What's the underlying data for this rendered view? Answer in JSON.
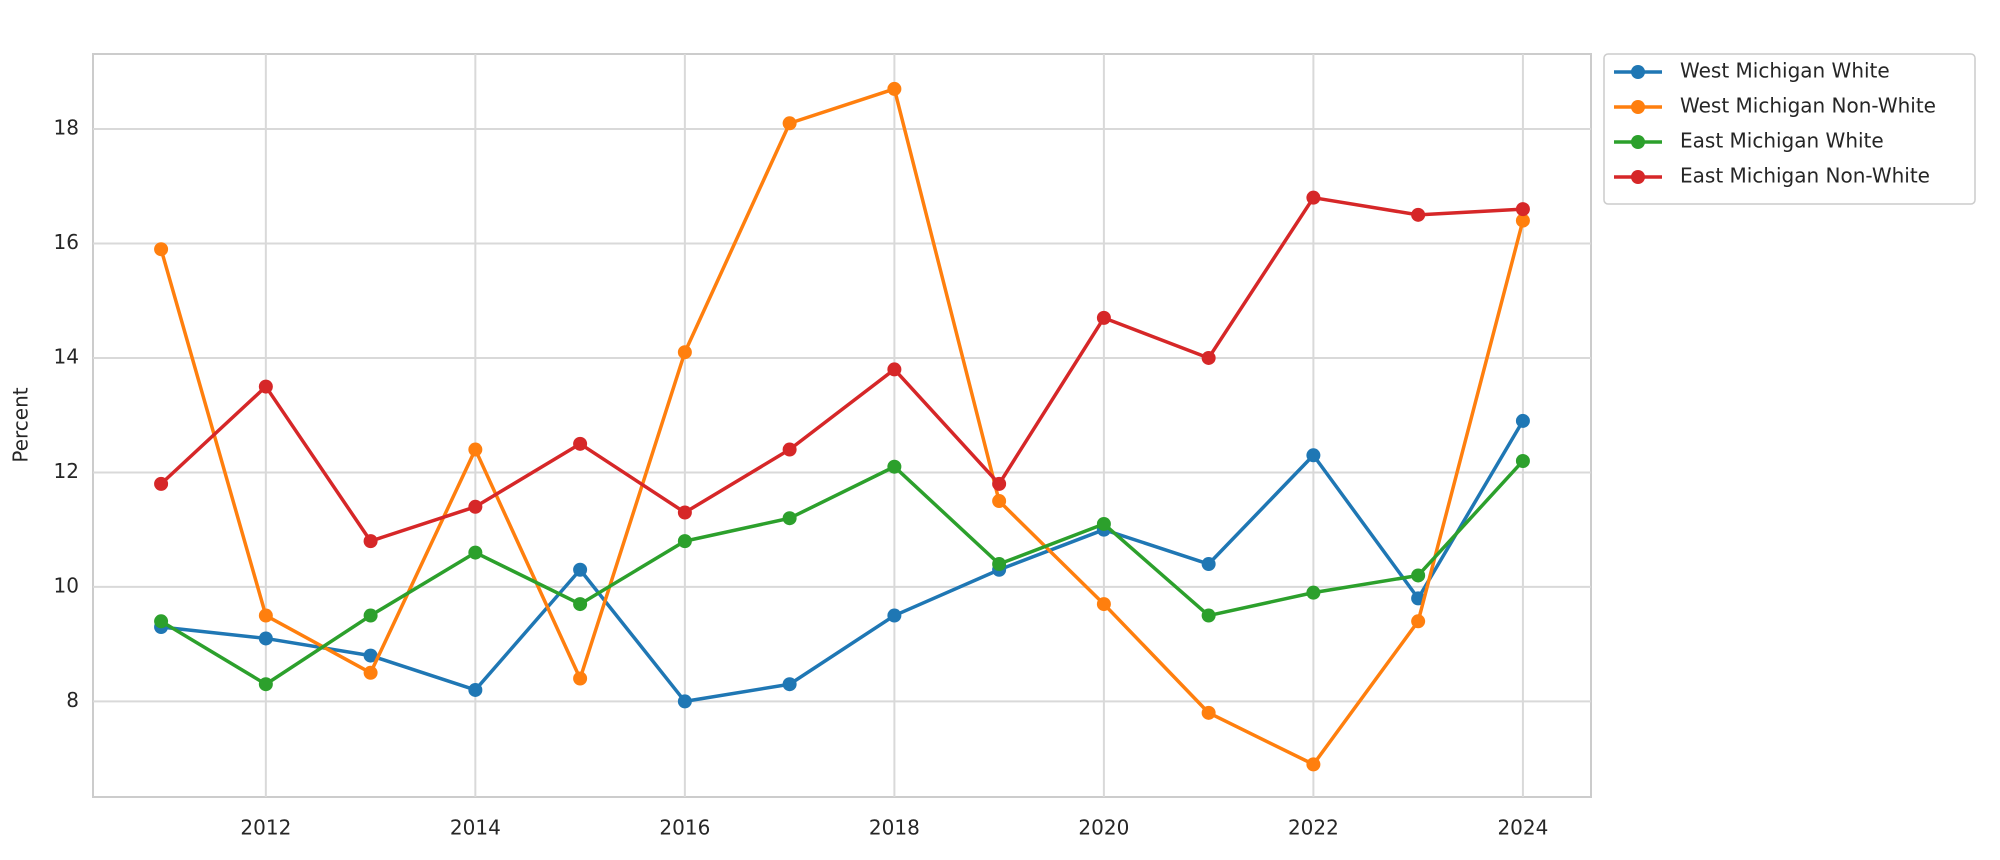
{
  "chart_data": {
    "type": "line",
    "y_label": "Percent",
    "x": [
      2011,
      2012,
      2013,
      2014,
      2015,
      2016,
      2017,
      2018,
      2019,
      2020,
      2021,
      2022,
      2023,
      2024
    ],
    "series": [
      {
        "name": "West Michigan White",
        "color": "#1f77b4",
        "values": [
          9.3,
          9.1,
          8.8,
          8.2,
          10.3,
          8.0,
          8.3,
          9.5,
          10.3,
          11.0,
          10.4,
          12.3,
          9.8,
          12.9
        ]
      },
      {
        "name": "West Michigan Non-White",
        "color": "#ff7f0e",
        "values": [
          15.9,
          9.5,
          8.5,
          12.4,
          8.4,
          14.1,
          18.1,
          18.7,
          11.5,
          9.7,
          7.8,
          6.9,
          9.4,
          16.4
        ]
      },
      {
        "name": "East Michigan White",
        "color": "#2ca02c",
        "values": [
          9.4,
          8.3,
          9.5,
          10.6,
          9.7,
          10.8,
          11.2,
          12.1,
          10.4,
          11.1,
          9.5,
          9.9,
          10.2,
          12.2
        ]
      },
      {
        "name": "East Michigan Non-White",
        "color": "#d62728",
        "values": [
          11.8,
          13.5,
          10.8,
          11.4,
          12.5,
          11.3,
          12.4,
          13.8,
          11.8,
          14.7,
          14.0,
          16.8,
          16.5,
          16.6
        ]
      }
    ],
    "xlim": [
      2010.35,
      2024.65
    ],
    "xticks": [
      2012,
      2014,
      2016,
      2018,
      2020,
      2022,
      2024
    ],
    "ylim": [
      6.33,
      19.31
    ],
    "yticks": [
      8,
      10,
      12,
      14,
      16,
      18
    ],
    "grid": true,
    "legend": "outside-upper-right",
    "markers": true
  }
}
